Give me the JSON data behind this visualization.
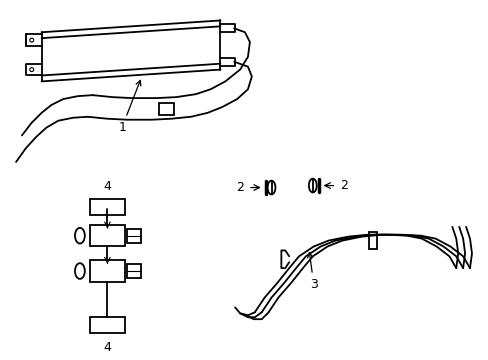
{
  "background_color": "#ffffff",
  "line_color": "#000000",
  "line_width": 1.3,
  "label_fontsize": 9,
  "figsize": [
    4.89,
    3.6
  ],
  "dpi": 100
}
